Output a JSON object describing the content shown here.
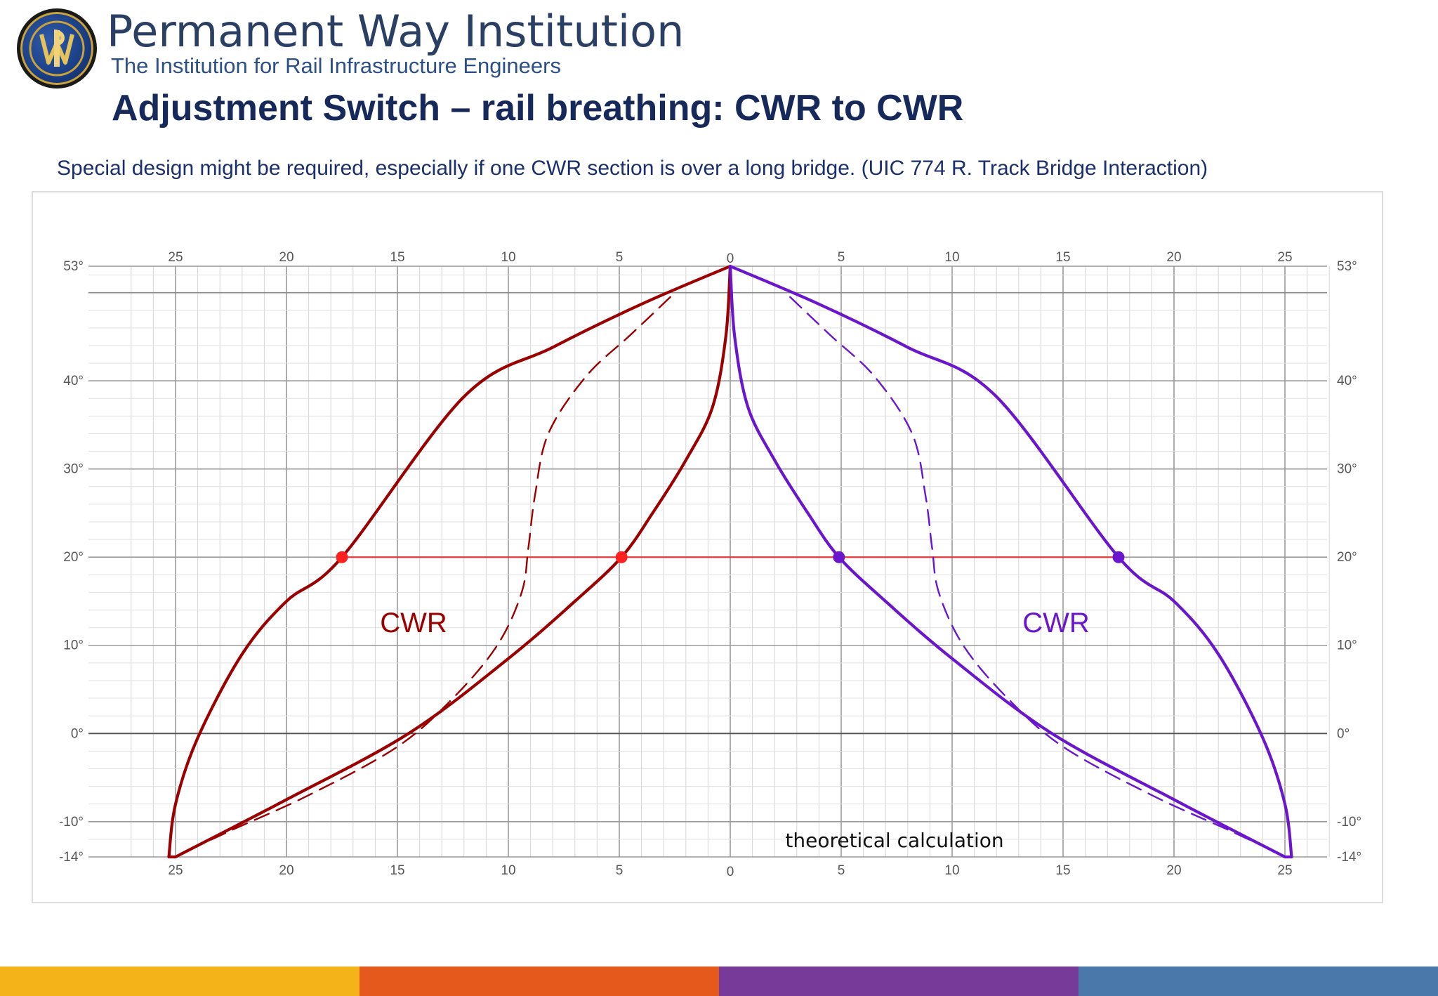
{
  "header": {
    "org_name": "Permanent Way Institution",
    "org_subtitle": "The Institution for Rail Infrastructure Engineers",
    "slide_title": "Adjustment Switch – rail breathing: CWR to CWR",
    "subtitle": "Special design might be required, especially if one CWR section is over a long bridge. (UIC 774 R. Track Bridge Interaction)"
  },
  "logo": {
    "monogram": "PWI"
  },
  "colors": {
    "left_series": "#9b0000",
    "right_series": "#6a16cc",
    "reference_line": "#e43a3a",
    "reference_point_left": "#ff2020",
    "bar": [
      "#f5b31a",
      "#e55a1c",
      "#773a98",
      "#4a78aa"
    ]
  },
  "chart_data": {
    "type": "line",
    "title": "",
    "annotation": "theoretical calculation",
    "x_axis": {
      "left_ticks": [
        "25",
        "20",
        "15",
        "10",
        "5"
      ],
      "center_tick": "0",
      "right_ticks": [
        "5",
        "10",
        "15",
        "20",
        "25"
      ],
      "range_left": [
        27,
        0
      ],
      "range_right": [
        0,
        27
      ]
    },
    "y_axis": {
      "range": [
        -14,
        53
      ],
      "tick_labels": [
        {
          "value": 53,
          "label": "53°"
        },
        {
          "value": 40,
          "label": "40°"
        },
        {
          "value": 30,
          "label": "30°"
        },
        {
          "value": 20,
          "label": "20°"
        },
        {
          "value": 10,
          "label": "10°"
        },
        {
          "value": 0,
          "label": "0°"
        },
        {
          "value": -10,
          "label": "-10°"
        },
        {
          "value": -14,
          "label": "-14°"
        }
      ]
    },
    "series_labels": {
      "left": "CWR",
      "right": "CWR"
    },
    "reference_temperature": 20,
    "reference_points": [
      {
        "side": "left",
        "x": 17.5,
        "y": 20
      },
      {
        "side": "left",
        "x": 4.9,
        "y": 20
      },
      {
        "side": "right",
        "x": 4.9,
        "y": 20
      },
      {
        "side": "right",
        "x": 17.5,
        "y": 20
      }
    ],
    "series": [
      {
        "name": "outer envelope",
        "style": "solid",
        "points": [
          [
            0,
            53
          ],
          [
            4,
            48.7
          ],
          [
            8,
            43.8
          ],
          [
            12,
            38.2
          ],
          [
            17.5,
            20
          ],
          [
            20,
            15
          ],
          [
            22,
            9
          ],
          [
            24,
            -0.5
          ],
          [
            25,
            -8
          ],
          [
            25.3,
            -14
          ]
        ]
      },
      {
        "name": "inner envelope",
        "style": "solid",
        "points": [
          [
            0,
            53
          ],
          [
            0.2,
            45
          ],
          [
            0.8,
            37
          ],
          [
            2,
            31
          ],
          [
            3.5,
            25
          ],
          [
            4.9,
            20
          ],
          [
            7,
            15
          ],
          [
            10,
            8.5
          ],
          [
            14.5,
            0
          ],
          [
            20,
            -7.5
          ],
          [
            25,
            -14
          ]
        ]
      },
      {
        "name": "theoretical curve",
        "style": "dashed",
        "points": [
          [
            2.7,
            49.5
          ],
          [
            4.5,
            45.2
          ],
          [
            6.5,
            40.5
          ],
          [
            8.2,
            34
          ],
          [
            8.8,
            27
          ],
          [
            9.1,
            21
          ],
          [
            9.4,
            16
          ],
          [
            10.5,
            10
          ],
          [
            12.5,
            4
          ],
          [
            15,
            -1.5
          ],
          [
            19,
            -7
          ],
          [
            22.5,
            -11
          ],
          [
            24.7,
            -13.6
          ]
        ]
      }
    ]
  }
}
